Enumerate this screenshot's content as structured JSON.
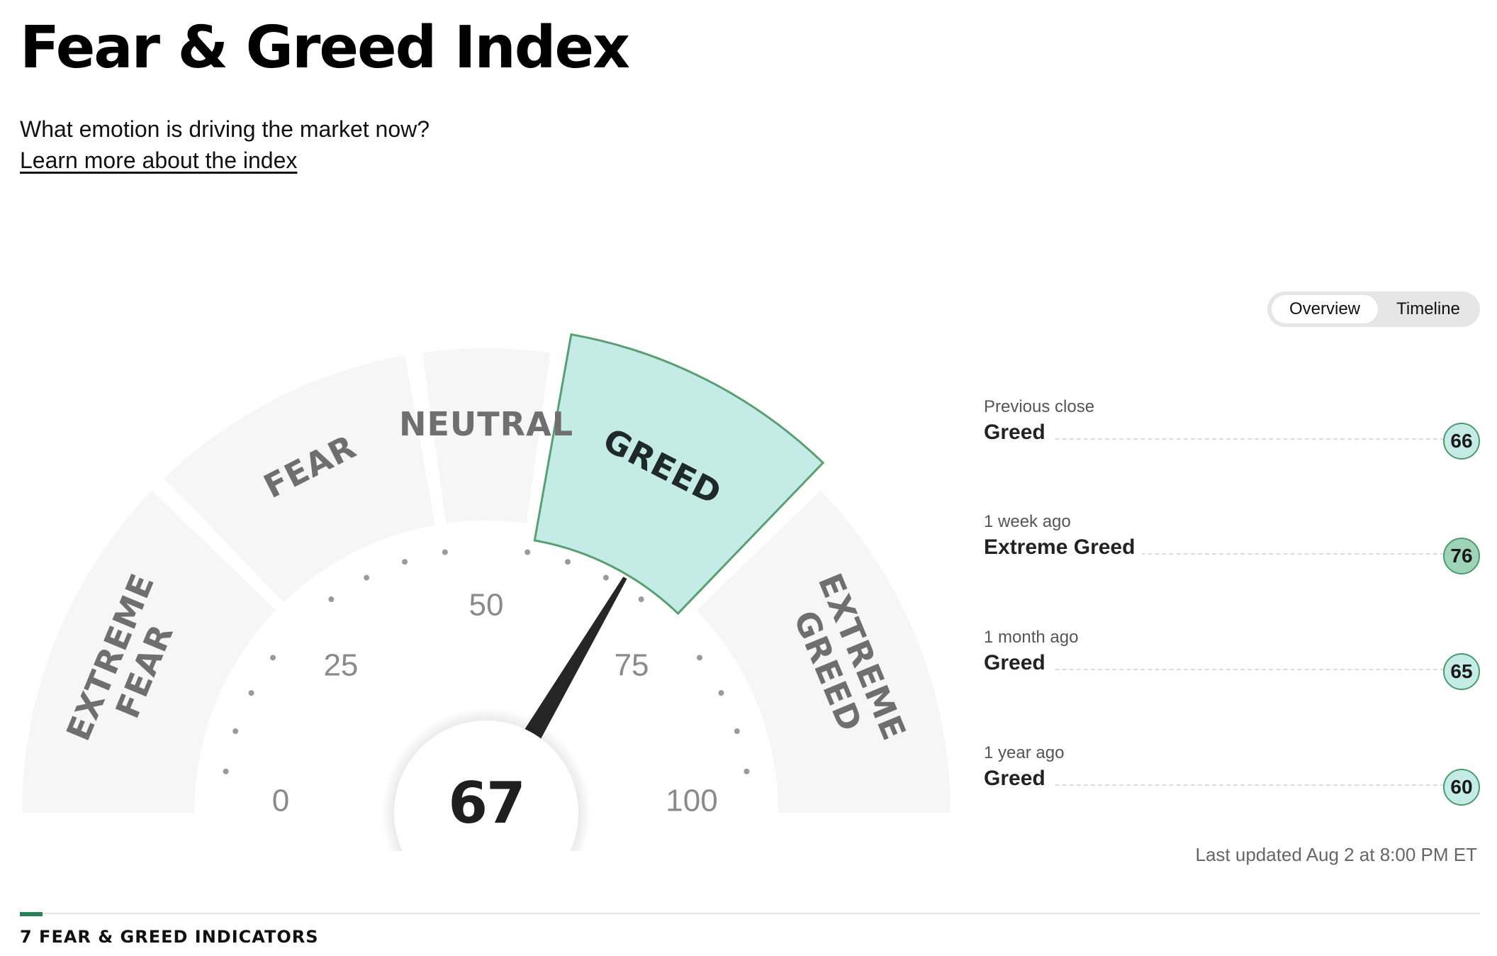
{
  "header": {
    "title": "Fear & Greed Index",
    "question": "What emotion is driving the market now?",
    "learn_more_link": "Learn more about the index"
  },
  "view_toggle": {
    "options": [
      "Overview",
      "Timeline"
    ],
    "selected": "Overview"
  },
  "gauge": {
    "current_value": 67,
    "current_rating": "GREED",
    "scale_min": 0,
    "scale_max": 100,
    "tick_labels": [
      "0",
      "25",
      "50",
      "75",
      "100"
    ],
    "segments": [
      {
        "label_lines": [
          "EXTREME",
          "FEAR"
        ],
        "from": 0,
        "to": 25
      },
      {
        "label_lines": [
          "FEAR"
        ],
        "from": 25,
        "to": 45
      },
      {
        "label_lines": [
          "NEUTRAL"
        ],
        "from": 45,
        "to": 55
      },
      {
        "label_lines": [
          "GREED"
        ],
        "from": 55,
        "to": 75
      },
      {
        "label_lines": [
          "EXTREME",
          "GREED"
        ],
        "from": 75,
        "to": 100
      }
    ],
    "active_segment": 3,
    "colors": {
      "segment_fill": "#f6f6f6",
      "active_fill": "#c5ebe7",
      "active_stroke": "#5a9e74",
      "needle": "#262626"
    }
  },
  "history": [
    {
      "period": "Previous close",
      "rating": "Greed",
      "value": "66"
    },
    {
      "period": "1 week ago",
      "rating": "Extreme Greed",
      "value": "76"
    },
    {
      "period": "1 month ago",
      "rating": "Greed",
      "value": "65"
    },
    {
      "period": "1 year ago",
      "rating": "Greed",
      "value": "60"
    }
  ],
  "last_updated": "Last updated Aug 2 at 8:00 PM ET",
  "indicators_heading": "7 FEAR & GREED INDICATORS"
}
